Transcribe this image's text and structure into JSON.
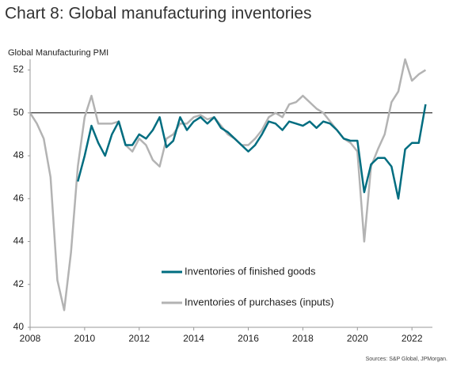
{
  "chart_data": {
    "type": "line",
    "title": "Chart 8: Global manufacturing inventories",
    "y_label": "Global Manufacturing PMI",
    "source": "Sources: S&P Global, JPMorgan.",
    "x": [
      2008,
      2008.25,
      2008.5,
      2008.75,
      2009,
      2009.25,
      2009.5,
      2009.75,
      2010,
      2010.25,
      2010.5,
      2010.75,
      2011,
      2011.25,
      2011.5,
      2011.75,
      2012,
      2012.25,
      2012.5,
      2012.75,
      2013,
      2013.25,
      2013.5,
      2013.75,
      2014,
      2014.25,
      2014.5,
      2014.75,
      2015,
      2015.25,
      2015.5,
      2015.75,
      2016,
      2016.25,
      2016.5,
      2016.75,
      2017,
      2017.25,
      2017.5,
      2017.75,
      2018,
      2018.25,
      2018.5,
      2018.75,
      2019,
      2019.25,
      2019.5,
      2019.75,
      2020,
      2020.25,
      2020.5,
      2020.75,
      2021,
      2021.25,
      2021.5,
      2021.75,
      2022,
      2022.25,
      2022.5
    ],
    "series": [
      {
        "name": "Inventories of finished goods",
        "color": "#006d80",
        "values": [
          null,
          null,
          null,
          null,
          null,
          null,
          null,
          46.8,
          48.0,
          49.4,
          48.6,
          48.0,
          49.0,
          49.6,
          48.5,
          48.5,
          49.0,
          48.8,
          49.2,
          49.8,
          48.4,
          48.7,
          49.8,
          49.2,
          49.6,
          49.8,
          49.5,
          49.8,
          49.3,
          49.1,
          48.8,
          48.5,
          48.2,
          48.5,
          49.0,
          49.6,
          49.5,
          49.2,
          49.6,
          49.5,
          49.4,
          49.6,
          49.3,
          49.6,
          49.5,
          49.2,
          48.8,
          48.7,
          48.7,
          46.3,
          47.6,
          47.9,
          47.9,
          47.5,
          46.0,
          48.3,
          48.6,
          48.6,
          50.4
        ]
      },
      {
        "name": "Inventories of purchases (inputs)",
        "color": "#b3b3b3",
        "values": [
          50.0,
          49.5,
          48.8,
          47.0,
          42.2,
          40.8,
          43.5,
          47.5,
          49.8,
          50.8,
          49.5,
          49.5,
          49.5,
          49.6,
          48.5,
          48.2,
          48.8,
          48.5,
          47.8,
          47.5,
          48.8,
          49.0,
          49.5,
          49.5,
          49.8,
          49.9,
          49.7,
          49.8,
          49.4,
          49.0,
          48.8,
          48.5,
          48.5,
          48.8,
          49.2,
          49.8,
          50.0,
          49.8,
          50.4,
          50.5,
          50.8,
          50.5,
          50.2,
          50.0,
          49.6,
          49.2,
          48.8,
          48.6,
          48.2,
          44.0,
          47.5,
          48.3,
          49.0,
          50.5,
          51.0,
          52.5,
          51.5,
          51.8,
          52.0
        ]
      }
    ],
    "xlim": [
      2008,
      2022.75
    ],
    "xticks": [
      2008,
      2010,
      2012,
      2014,
      2016,
      2018,
      2020,
      2022
    ],
    "ylim": [
      40,
      52.5
    ],
    "yticks": [
      40,
      42,
      44,
      46,
      48,
      50,
      52
    ],
    "reference_line": 50,
    "grid": false
  }
}
